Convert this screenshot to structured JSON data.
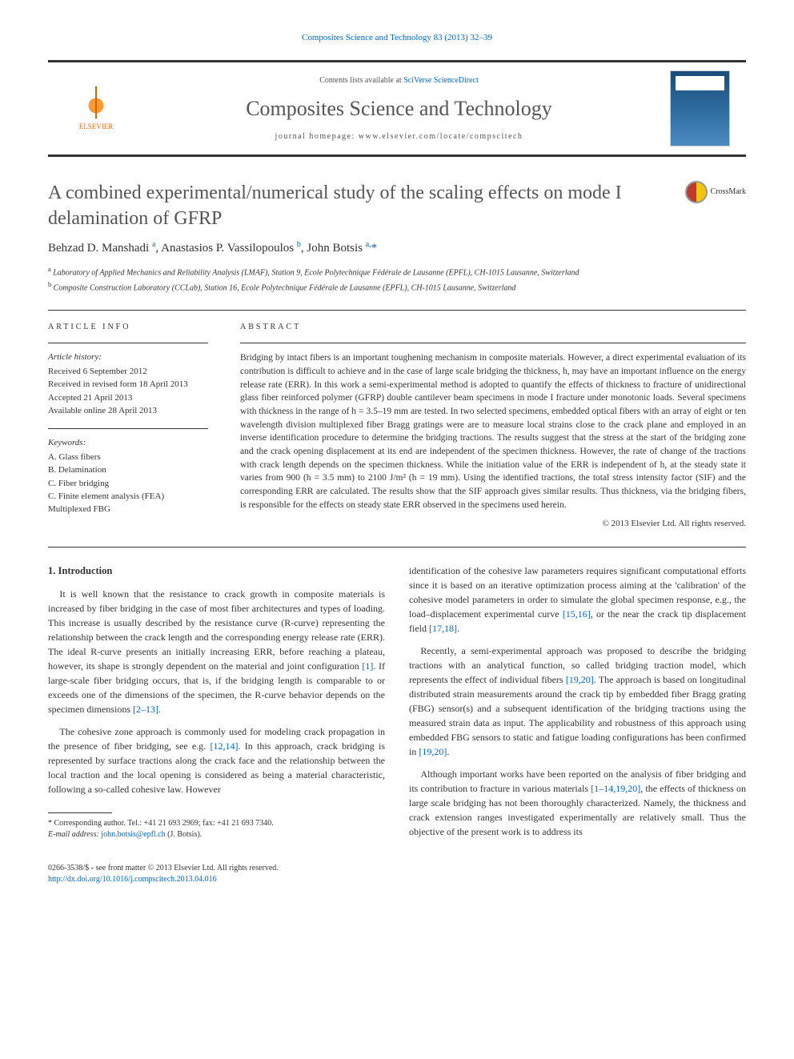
{
  "journal_ref": {
    "text": "Composites Science and Technology 83 (2013) 32–39"
  },
  "banner": {
    "publisher": "ELSEVIER",
    "contents_prefix": "Contents lists available at ",
    "contents_link": "SciVerse ScienceDirect",
    "journal_name": "Composites Science and Technology",
    "homepage_label": "journal homepage: ",
    "homepage_url": "www.elsevier.com/locate/compscitech"
  },
  "crossmark_label": "CrossMark",
  "title": "A combined experimental/numerical study of the scaling effects on mode I delamination of GFRP",
  "authors_html": "Behzad D. Manshadi <sup>a</sup>, Anastasios P. Vassilopoulos <sup>b</sup>, John Botsis <sup>a,</sup>*",
  "affiliations": [
    {
      "sup": "a",
      "text": "Laboratory of Applied Mechanics and Reliability Analysis (LMAF), Station 9, Ecole Polytechnique Fédérale de Lausanne (EPFL), CH-1015 Lausanne, Switzerland"
    },
    {
      "sup": "b",
      "text": "Composite Construction Laboratory (CCLab), Station 16, Ecole Polytechnique Fédérale de Lausanne (EPFL), CH-1015 Lausanne, Switzerland"
    }
  ],
  "article_info": {
    "head": "ARTICLE INFO",
    "history_label": "Article history:",
    "history": [
      "Received 6 September 2012",
      "Received in revised form 18 April 2013",
      "Accepted 21 April 2013",
      "Available online 28 April 2013"
    ],
    "keywords_label": "Keywords:",
    "keywords": [
      "A. Glass fibers",
      "B. Delamination",
      "C. Fiber bridging",
      "C. Finite element analysis (FEA)",
      "Multiplexed FBG"
    ]
  },
  "abstract": {
    "head": "ABSTRACT",
    "text": "Bridging by intact fibers is an important toughening mechanism in composite materials. However, a direct experimental evaluation of its contribution is difficult to achieve and in the case of large scale bridging the thickness, h, may have an important influence on the energy release rate (ERR). In this work a semi-experimental method is adopted to quantify the effects of thickness to fracture of unidirectional glass fiber reinforced polymer (GFRP) double cantilever beam specimens in mode I fracture under monotonic loads. Several specimens with thickness in the range of h = 3.5–19 mm are tested. In two selected specimens, embedded optical fibers with an array of eight or ten wavelength division multiplexed fiber Bragg gratings were are to measure local strains close to the crack plane and employed in an inverse identification procedure to determine the bridging tractions. The results suggest that the stress at the start of the bridging zone and the crack opening displacement at its end are independent of the specimen thickness. However, the rate of change of the tractions with crack length depends on the specimen thickness. While the initiation value of the ERR is independent of h, at the steady state it varies from 900 (h = 3.5 mm) to 2100 J/m² (h = 19 mm). Using the identified tractions, the total stress intensity factor (SIF) and the corresponding ERR are calculated. The results show that the SIF approach gives similar results. Thus thickness, via the bridging fibers, is responsible for the effects on steady state ERR observed in the specimens used herein.",
    "copyright": "© 2013 Elsevier Ltd. All rights reserved."
  },
  "body": {
    "section_head": "1. Introduction",
    "left": [
      "It is well known that the resistance to crack growth in composite materials is increased by fiber bridging in the case of most fiber architectures and types of loading. This increase is usually described by the resistance curve (R-curve) representing the relationship between the crack length and the corresponding energy release rate (ERR). The ideal R-curve presents an initially increasing ERR, before reaching a plateau, however, its shape is strongly dependent on the material and joint configuration [1]. If large-scale fiber bridging occurs, that is, if the bridging length is comparable to or exceeds one of the dimensions of the specimen, the R-curve behavior depends on the specimen dimensions [2–13].",
      "The cohesive zone approach is commonly used for modeling crack propagation in the presence of fiber bridging, see e.g. [12,14]. In this approach, crack bridging is represented by surface tractions along the crack face and the relationship between the local traction and the local opening is considered as being a material characteristic, following a so-called cohesive law. However"
    ],
    "right": [
      "identification of the cohesive law parameters requires significant computational efforts since it is based on an iterative optimization process aiming at the 'calibration' of the cohesive model parameters in order to simulate the global specimen response, e.g., the load–displacement experimental curve [15,16], or the near the crack tip displacement field [17,18].",
      "Recently, a semi-experimental approach was proposed to describe the bridging tractions with an analytical function, so called bridging traction model, which represents the effect of individual fibers [19,20]. The approach is based on longitudinal distributed strain measurements around the crack tip by embedded fiber Bragg grating (FBG) sensor(s) and a subsequent identification of the bridging tractions using the measured strain data as input. The applicability and robustness of this approach using embedded FBG sensors to static and fatigue loading configurations has been confirmed in [19,20].",
      "Although important works have been reported on the analysis of fiber bridging and its contribution to fracture in various materials [1–14,19,20], the effects of thickness on large scale bridging has not been thoroughly characterized. Namely, the thickness and crack extension ranges investigated experimentally are relatively small. Thus the objective of the present work is to address its"
    ]
  },
  "footnote": {
    "star": "* Corresponding author. Tel.: +41 21 693 2969; fax: +41 21 693 7340.",
    "email_label": "E-mail address: ",
    "email": "john.botsis@epfl.ch",
    "email_owner": " (J. Botsis)."
  },
  "footer": {
    "issn_line": "0266-3538/$ - see front matter © 2013 Elsevier Ltd. All rights reserved.",
    "doi": "http://dx.doi.org/10.1016/j.compscitech.2013.04.016"
  },
  "colors": {
    "link": "#0066cc",
    "text": "#333333",
    "heading": "#555555",
    "elsevier": "#ff6600"
  }
}
